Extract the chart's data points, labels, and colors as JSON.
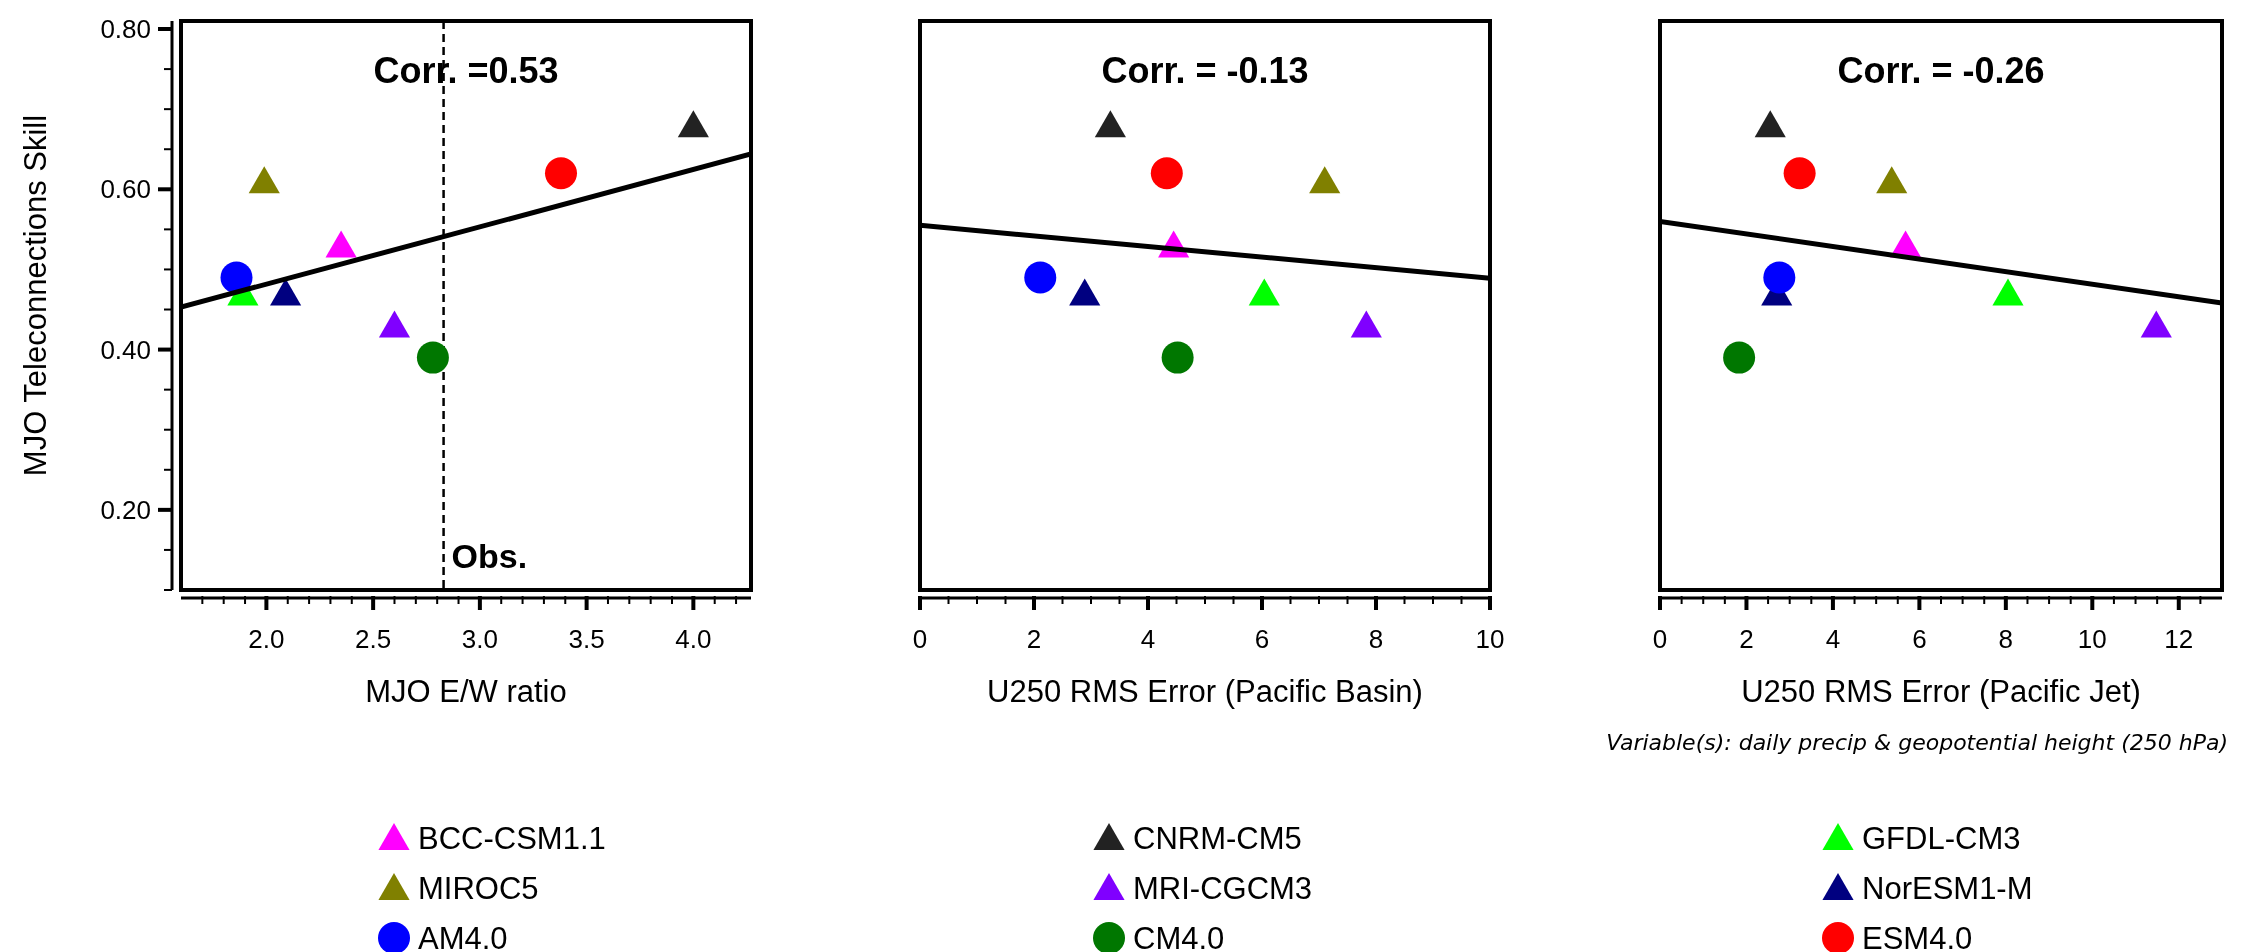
{
  "chart_data": [
    {
      "type": "scatter",
      "xlabel": "MJO E/W ratio",
      "ylabel": "MJO Teleconnections Skill",
      "annotations": [
        "Corr. =0.53"
      ],
      "legend": "bottom",
      "xlim": [
        1.6,
        4.27
      ],
      "ylim": [
        0.1,
        0.81
      ],
      "xticks": [
        {
          "value": 1.7,
          "label": null
        },
        {
          "value": 1.8,
          "label": null
        },
        {
          "value": 1.9,
          "label": null
        },
        {
          "value": 2,
          "label": "2.0"
        },
        {
          "value": 2.1,
          "label": null
        },
        {
          "value": 2.2,
          "label": null
        },
        {
          "value": 2.3,
          "label": null
        },
        {
          "value": 2.4,
          "label": null
        },
        {
          "value": 2.5,
          "label": "2.5"
        },
        {
          "value": 2.6,
          "label": null
        },
        {
          "value": 2.7,
          "label": null
        },
        {
          "value": 2.8,
          "label": null
        },
        {
          "value": 2.9,
          "label": null
        },
        {
          "value": 3,
          "label": "3.0"
        },
        {
          "value": 3.1,
          "label": null
        },
        {
          "value": 3.2,
          "label": null
        },
        {
          "value": 3.3,
          "label": null
        },
        {
          "value": 3.4,
          "label": null
        },
        {
          "value": 3.5,
          "label": "3.5"
        },
        {
          "value": 3.6,
          "label": null
        },
        {
          "value": 3.7,
          "label": null
        },
        {
          "value": 3.8,
          "label": null
        },
        {
          "value": 3.9,
          "label": null
        },
        {
          "value": 4,
          "label": "4.0"
        },
        {
          "value": 4.1,
          "label": null
        },
        {
          "value": 4.2,
          "label": null
        }
      ],
      "yticks": [
        {
          "value": 0.1,
          "label": null
        },
        {
          "value": 0.15,
          "label": null
        },
        {
          "value": 0.2,
          "label": "0.20"
        },
        {
          "value": 0.25,
          "label": null
        },
        {
          "value": 0.3,
          "label": null
        },
        {
          "value": 0.35,
          "label": null
        },
        {
          "value": 0.4,
          "label": "0.40"
        },
        {
          "value": 0.45,
          "label": null
        },
        {
          "value": 0.5,
          "label": null
        },
        {
          "value": 0.55,
          "label": null
        },
        {
          "value": 0.6,
          "label": "0.60"
        },
        {
          "value": 0.65,
          "label": null
        },
        {
          "value": 0.7,
          "label": null
        },
        {
          "value": 0.75,
          "label": null
        },
        {
          "value": 0.8,
          "label": "0.80"
        }
      ],
      "ref_lines": [
        {
          "axis": "x",
          "value": 2.83,
          "label": "Obs.",
          "color": "#000000",
          "line_style": "dashed"
        }
      ],
      "series": [
        {
          "name": "BCC-CSM1.1",
          "color": "#ff00ff",
          "marker": "triangle",
          "x": [
            2.35
          ],
          "values": [
            0.53
          ]
        },
        {
          "name": "CNRM-CM5",
          "color": "#222222",
          "marker": "triangle",
          "x": [
            4.0
          ],
          "values": [
            0.68
          ]
        },
        {
          "name": "GFDL-CM3",
          "color": "#00ff00",
          "marker": "triangle",
          "x": [
            1.89
          ],
          "values": [
            0.47
          ]
        },
        {
          "name": "MIROC5",
          "color": "#808000",
          "marker": "triangle",
          "x": [
            1.99
          ],
          "values": [
            0.61
          ]
        },
        {
          "name": "MRI-CGCM3",
          "color": "#8000ff",
          "marker": "triangle",
          "x": [
            2.6
          ],
          "values": [
            0.43
          ]
        },
        {
          "name": "NorESM1-M",
          "color": "#000080",
          "marker": "triangle",
          "x": [
            2.09
          ],
          "values": [
            0.47
          ]
        },
        {
          "name": "AM4.0",
          "color": "#0000ff",
          "marker": "circle",
          "x": [
            1.86
          ],
          "values": [
            0.49
          ]
        },
        {
          "name": "CM4.0",
          "color": "#007700",
          "marker": "circle",
          "x": [
            2.78
          ],
          "values": [
            0.39
          ]
        },
        {
          "name": "ESM4.0",
          "color": "#ff0000",
          "marker": "circle",
          "x": [
            3.38
          ],
          "values": [
            0.62
          ]
        },
        {
          "type": "line",
          "color": "#000000",
          "x": [
            1.6,
            4.27
          ],
          "values": [
            0.453,
            0.644
          ]
        }
      ]
    },
    {
      "type": "scatter",
      "xlabel": "U250 RMS Error (Pacific Basin)",
      "annotations": [
        "Corr. = -0.13"
      ],
      "tick_labels": "x",
      "xlim": [
        0,
        10
      ],
      "ylim": [
        0.1,
        0.81
      ],
      "xticks": [
        0,
        {
          "value": 0.5,
          "label": null
        },
        {
          "value": 1,
          "label": null
        },
        {
          "value": 1.5,
          "label": null
        },
        2,
        {
          "value": 2.5,
          "label": null
        },
        {
          "value": 3,
          "label": null
        },
        {
          "value": 3.5,
          "label": null
        },
        4,
        {
          "value": 4.5,
          "label": null
        },
        {
          "value": 5,
          "label": null
        },
        {
          "value": 5.5,
          "label": null
        },
        6,
        {
          "value": 6.5,
          "label": null
        },
        {
          "value": 7,
          "label": null
        },
        {
          "value": 7.5,
          "label": null
        },
        8,
        {
          "value": 8.5,
          "label": null
        },
        {
          "value": 9,
          "label": null
        },
        {
          "value": 9.5,
          "label": null
        },
        10
      ],
      "series": [
        {
          "color": "#ff00ff",
          "marker": "triangle",
          "x": [
            4.45
          ],
          "values": [
            0.53
          ]
        },
        {
          "color": "#222222",
          "marker": "triangle",
          "x": [
            3.34
          ],
          "values": [
            0.68
          ]
        },
        {
          "color": "#00ff00",
          "marker": "triangle",
          "x": [
            6.04
          ],
          "values": [
            0.47
          ]
        },
        {
          "color": "#808000",
          "marker": "triangle",
          "x": [
            7.1
          ],
          "values": [
            0.61
          ]
        },
        {
          "color": "#8000ff",
          "marker": "triangle",
          "x": [
            7.83
          ],
          "values": [
            0.43
          ]
        },
        {
          "color": "#000080",
          "marker": "triangle",
          "x": [
            2.89
          ],
          "values": [
            0.47
          ]
        },
        {
          "color": "#0000ff",
          "marker": "circle",
          "x": [
            2.11
          ],
          "values": [
            0.49
          ]
        },
        {
          "color": "#007700",
          "marker": "circle",
          "x": [
            4.52
          ],
          "values": [
            0.39
          ]
        },
        {
          "color": "#ff0000",
          "marker": "circle",
          "x": [
            4.33
          ],
          "values": [
            0.62
          ]
        },
        {
          "type": "line",
          "color": "#000000",
          "x": [
            0,
            10
          ],
          "values": [
            0.555,
            0.489
          ]
        }
      ]
    },
    {
      "type": "scatter",
      "xlabel": "U250 RMS Error (Pacific Jet)",
      "annotations": [
        "Corr. = -0.26",
        "Variable(s): daily precip & geopotential height (250 hPa)"
      ],
      "tick_labels": "x",
      "xlim": [
        0,
        13
      ],
      "ylim": [
        0.1,
        0.81
      ],
      "xticks": [
        0,
        {
          "value": 0.5,
          "label": null
        },
        {
          "value": 1,
          "label": null
        },
        {
          "value": 1.5,
          "label": null
        },
        2,
        {
          "value": 2.5,
          "label": null
        },
        {
          "value": 3,
          "label": null
        },
        {
          "value": 3.5,
          "label": null
        },
        4,
        {
          "value": 4.5,
          "label": null
        },
        {
          "value": 5,
          "label": null
        },
        {
          "value": 5.5,
          "label": null
        },
        6,
        {
          "value": 6.5,
          "label": null
        },
        {
          "value": 7,
          "label": null
        },
        {
          "value": 7.5,
          "label": null
        },
        8,
        {
          "value": 8.5,
          "label": null
        },
        {
          "value": 9,
          "label": null
        },
        {
          "value": 9.5,
          "label": null
        },
        10,
        {
          "value": 10.5,
          "label": null
        },
        {
          "value": 11,
          "label": null
        },
        {
          "value": 11.5,
          "label": null
        },
        12,
        {
          "value": 12.5,
          "label": null
        }
      ],
      "series": [
        {
          "color": "#ff00ff",
          "marker": "triangle",
          "x": [
            5.68
          ],
          "values": [
            0.53
          ]
        },
        {
          "color": "#222222",
          "marker": "triangle",
          "x": [
            2.55
          ],
          "values": [
            0.68
          ]
        },
        {
          "color": "#00ff00",
          "marker": "triangle",
          "x": [
            8.05
          ],
          "values": [
            0.47
          ]
        },
        {
          "color": "#808000",
          "marker": "triangle",
          "x": [
            5.36
          ],
          "values": [
            0.61
          ]
        },
        {
          "color": "#8000ff",
          "marker": "triangle",
          "x": [
            11.48
          ],
          "values": [
            0.43
          ]
        },
        {
          "color": "#000080",
          "marker": "triangle",
          "x": [
            2.7
          ],
          "values": [
            0.47
          ]
        },
        {
          "color": "#0000ff",
          "marker": "circle",
          "x": [
            2.76
          ],
          "values": [
            0.49
          ]
        },
        {
          "color": "#007700",
          "marker": "circle",
          "x": [
            1.83
          ],
          "values": [
            0.39
          ]
        },
        {
          "color": "#ff0000",
          "marker": "circle",
          "x": [
            3.23
          ],
          "values": [
            0.62
          ]
        },
        {
          "type": "line",
          "color": "#000000",
          "x": [
            0,
            13
          ],
          "values": [
            0.56,
            0.458
          ]
        }
      ]
    }
  ]
}
